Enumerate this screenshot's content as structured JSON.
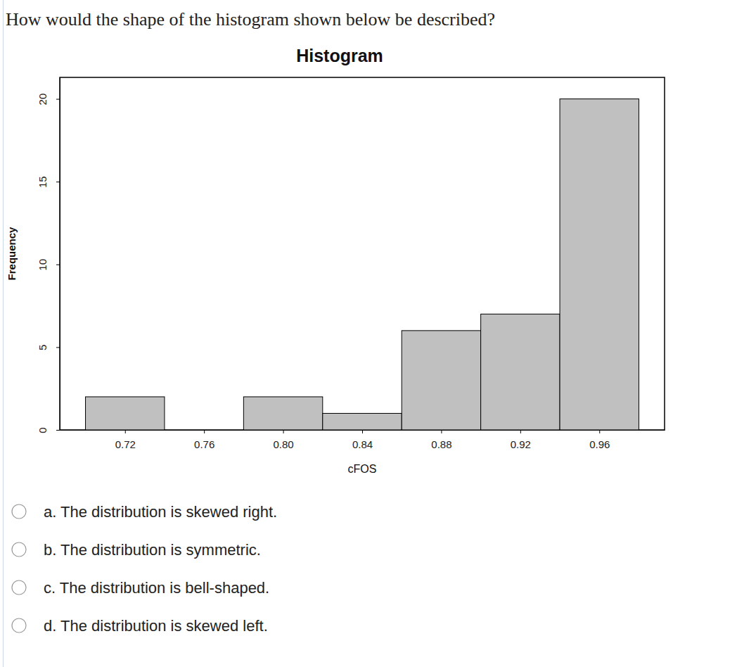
{
  "question": "How would the shape of the histogram shown below be described?",
  "options": [
    "a. The distribution is skewed right.",
    "b. The distribution is symmetric.",
    "c. The distribution is bell-shaped.",
    "d. The distribution is skewed left."
  ],
  "chart_data": {
    "type": "histogram",
    "title": "Histogram",
    "x_label": "cFOS",
    "y_label": "Frequency",
    "bins": [
      0.7,
      0.74,
      0.78,
      0.82,
      0.86,
      0.9,
      0.94,
      0.98
    ],
    "values": [
      2,
      0,
      2,
      1,
      6,
      7,
      20
    ],
    "color": "#c0c0c0",
    "xlim": [
      0.687,
      0.993
    ],
    "xticks": [
      0.72,
      0.76,
      {
        "value": 0.8,
        "label": "0.80"
      },
      0.84,
      0.88,
      0.92,
      0.96
    ],
    "ylim": [
      0,
      21.3
    ],
    "yticks": [
      0,
      5,
      10,
      15,
      20
    ],
    "grid": false
  }
}
